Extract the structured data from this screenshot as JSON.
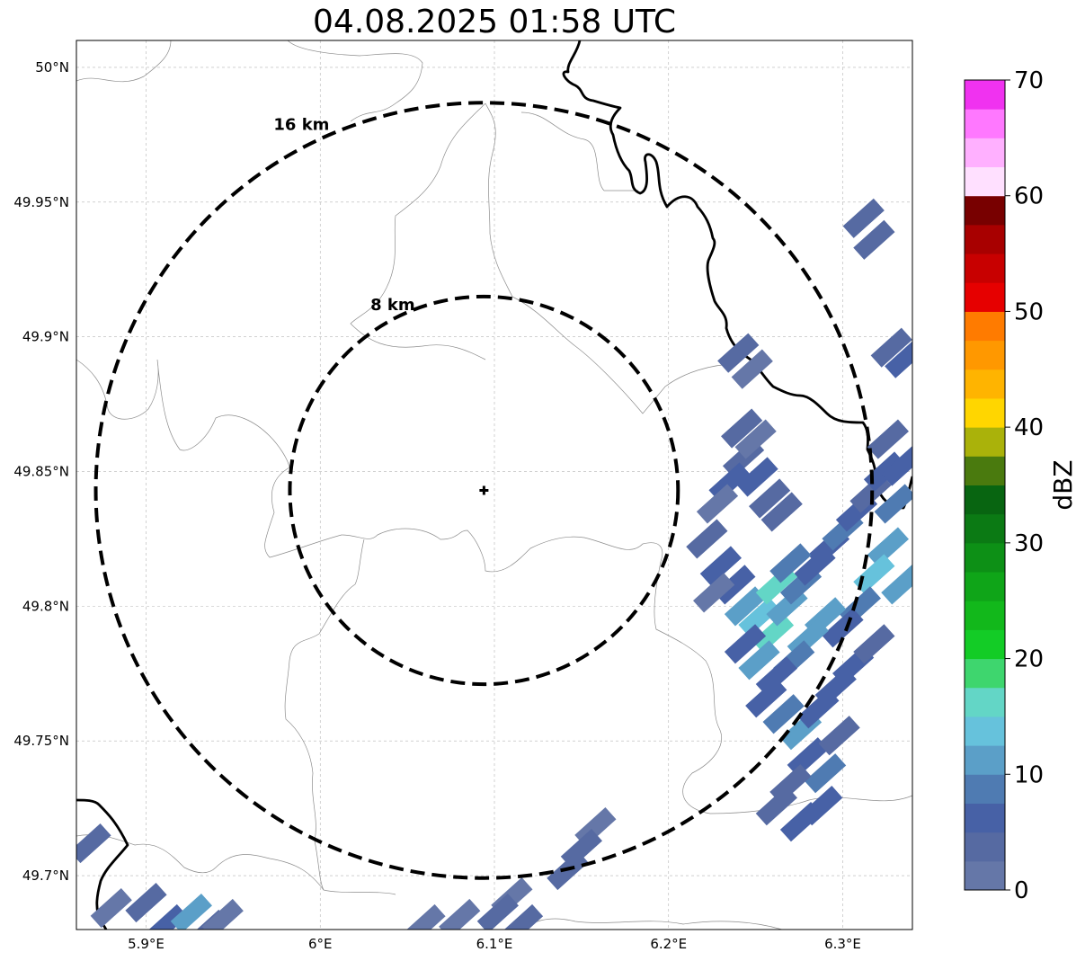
{
  "title": "04.08.2025 01:58 UTC",
  "map": {
    "lon_range": [
      5.86,
      6.34
    ],
    "lat_range": [
      49.68,
      50.01
    ],
    "x_ticks": [
      {
        "value": 5.9,
        "label": "5.9°E"
      },
      {
        "value": 6.0,
        "label": "6°E"
      },
      {
        "value": 6.1,
        "label": "6.1°E"
      },
      {
        "value": 6.2,
        "label": "6.2°E"
      },
      {
        "value": 6.3,
        "label": "6.3°E"
      }
    ],
    "y_ticks": [
      {
        "value": 50.0,
        "label": "50°N"
      },
      {
        "value": 49.95,
        "label": "49.95°N"
      },
      {
        "value": 49.9,
        "label": "49.9°N"
      },
      {
        "value": 49.85,
        "label": "49.85°N"
      },
      {
        "value": 49.8,
        "label": "49.8°N"
      },
      {
        "value": 49.75,
        "label": "49.75°N"
      },
      {
        "value": 49.7,
        "label": "49.7°N"
      }
    ],
    "grid": true,
    "radar_site": {
      "lon": 6.094,
      "lat": 49.843
    },
    "rings": [
      {
        "radius_km": 8,
        "label": "8 km"
      },
      {
        "radius_km": 16,
        "label": "16 km"
      }
    ]
  },
  "colorbar": {
    "label": "dBZ",
    "range": [
      0,
      70
    ],
    "ticks": [
      {
        "value": 0,
        "label": "0"
      },
      {
        "value": 10,
        "label": "10"
      },
      {
        "value": 20,
        "label": "20"
      },
      {
        "value": 30,
        "label": "30"
      },
      {
        "value": 40,
        "label": "40"
      },
      {
        "value": 50,
        "label": "50"
      },
      {
        "value": 60,
        "label": "60"
      },
      {
        "value": 70,
        "label": "70"
      }
    ],
    "colors": [
      "#6577a8",
      "#566aa2",
      "#4761a6",
      "#4f7bb2",
      "#5b9fc8",
      "#66c2dc",
      "#63d6c6",
      "#3ed66e",
      "#13cc26",
      "#12b81b",
      "#0fa518",
      "#0d9016",
      "#0b7a14",
      "#086511",
      "#4a7a0e",
      "#aab20a",
      "#ffd600",
      "#ffb400",
      "#ff9800",
      "#ff7b00",
      "#e60000",
      "#c80000",
      "#a80000",
      "#780000",
      "#ffe0ff",
      "#ffb0ff",
      "#ff78ff",
      "#f032f0"
    ]
  },
  "echo_cells": [
    {
      "lon": 6.243,
      "lat": 49.855,
      "dbz": 4
    },
    {
      "lon": 6.251,
      "lat": 49.848,
      "dbz": 6
    },
    {
      "lon": 6.258,
      "lat": 49.84,
      "dbz": 3
    },
    {
      "lon": 6.235,
      "lat": 49.846,
      "dbz": 5
    },
    {
      "lon": 6.228,
      "lat": 49.838,
      "dbz": 2
    },
    {
      "lon": 6.265,
      "lat": 49.835,
      "dbz": 4
    },
    {
      "lon": 6.222,
      "lat": 49.825,
      "dbz": 3
    },
    {
      "lon": 6.23,
      "lat": 49.815,
      "dbz": 5
    },
    {
      "lon": 6.238,
      "lat": 49.808,
      "dbz": 7
    },
    {
      "lon": 6.226,
      "lat": 49.805,
      "dbz": 2
    },
    {
      "lon": 6.244,
      "lat": 49.8,
      "dbz": 12
    },
    {
      "lon": 6.252,
      "lat": 49.796,
      "dbz": 14
    },
    {
      "lon": 6.26,
      "lat": 49.79,
      "dbz": 16
    },
    {
      "lon": 6.268,
      "lat": 49.8,
      "dbz": 12
    },
    {
      "lon": 6.276,
      "lat": 49.808,
      "dbz": 9
    },
    {
      "lon": 6.284,
      "lat": 49.815,
      "dbz": 7
    },
    {
      "lon": 6.292,
      "lat": 49.822,
      "dbz": 5
    },
    {
      "lon": 6.3,
      "lat": 49.828,
      "dbz": 8
    },
    {
      "lon": 6.308,
      "lat": 49.835,
      "dbz": 6
    },
    {
      "lon": 6.316,
      "lat": 49.842,
      "dbz": 4
    },
    {
      "lon": 6.324,
      "lat": 49.85,
      "dbz": 5
    },
    {
      "lon": 6.33,
      "lat": 49.838,
      "dbz": 9
    },
    {
      "lon": 6.326,
      "lat": 49.822,
      "dbz": 11
    },
    {
      "lon": 6.318,
      "lat": 49.812,
      "dbz": 13
    },
    {
      "lon": 6.334,
      "lat": 49.808,
      "dbz": 10
    },
    {
      "lon": 6.31,
      "lat": 49.8,
      "dbz": 8
    },
    {
      "lon": 6.3,
      "lat": 49.792,
      "dbz": 6
    },
    {
      "lon": 6.29,
      "lat": 49.796,
      "dbz": 10
    },
    {
      "lon": 6.28,
      "lat": 49.788,
      "dbz": 12
    },
    {
      "lon": 6.272,
      "lat": 49.78,
      "dbz": 9
    },
    {
      "lon": 6.262,
      "lat": 49.774,
      "dbz": 7
    },
    {
      "lon": 6.252,
      "lat": 49.78,
      "dbz": 11
    },
    {
      "lon": 6.244,
      "lat": 49.786,
      "dbz": 6
    },
    {
      "lon": 6.256,
      "lat": 49.766,
      "dbz": 5
    },
    {
      "lon": 6.266,
      "lat": 49.76,
      "dbz": 8
    },
    {
      "lon": 6.276,
      "lat": 49.754,
      "dbz": 10
    },
    {
      "lon": 6.286,
      "lat": 49.762,
      "dbz": 7
    },
    {
      "lon": 6.296,
      "lat": 49.77,
      "dbz": 5
    },
    {
      "lon": 6.306,
      "lat": 49.778,
      "dbz": 6
    },
    {
      "lon": 6.318,
      "lat": 49.786,
      "dbz": 4
    },
    {
      "lon": 6.28,
      "lat": 49.744,
      "dbz": 6
    },
    {
      "lon": 6.29,
      "lat": 49.738,
      "dbz": 9
    },
    {
      "lon": 6.27,
      "lat": 49.734,
      "dbz": 4
    },
    {
      "lon": 6.262,
      "lat": 49.726,
      "dbz": 3
    },
    {
      "lon": 6.276,
      "lat": 49.72,
      "dbz": 5
    },
    {
      "lon": 6.288,
      "lat": 49.726,
      "dbz": 6
    },
    {
      "lon": 6.298,
      "lat": 49.752,
      "dbz": 3
    },
    {
      "lon": 6.262,
      "lat": 49.808,
      "dbz": 15
    },
    {
      "lon": 6.27,
      "lat": 49.816,
      "dbz": 8
    },
    {
      "lon": 6.326,
      "lat": 49.862,
      "dbz": 4
    },
    {
      "lon": 6.334,
      "lat": 49.852,
      "dbz": 6
    },
    {
      "lon": 6.242,
      "lat": 49.866,
      "dbz": 3
    },
    {
      "lon": 6.25,
      "lat": 49.862,
      "dbz": 2
    },
    {
      "lon": 6.158,
      "lat": 49.718,
      "dbz": 2
    },
    {
      "lon": 6.15,
      "lat": 49.71,
      "dbz": 4
    },
    {
      "lon": 6.142,
      "lat": 49.702,
      "dbz": 3
    },
    {
      "lon": 6.11,
      "lat": 49.692,
      "dbz": 2
    },
    {
      "lon": 6.102,
      "lat": 49.686,
      "dbz": 4
    },
    {
      "lon": 6.116,
      "lat": 49.682,
      "dbz": 3
    },
    {
      "lon": 6.08,
      "lat": 49.684,
      "dbz": 2
    },
    {
      "lon": 6.06,
      "lat": 49.682,
      "dbz": 1
    },
    {
      "lon": 5.868,
      "lat": 49.712,
      "dbz": 3
    },
    {
      "lon": 5.88,
      "lat": 49.688,
      "dbz": 2
    },
    {
      "lon": 5.9,
      "lat": 49.69,
      "dbz": 4
    },
    {
      "lon": 5.912,
      "lat": 49.682,
      "dbz": 5
    },
    {
      "lon": 5.926,
      "lat": 49.686,
      "dbz": 12
    },
    {
      "lon": 5.936,
      "lat": 49.68,
      "dbz": 3
    },
    {
      "lon": 5.944,
      "lat": 49.684,
      "dbz": 2
    },
    {
      "lon": 6.24,
      "lat": 49.894,
      "dbz": 3
    },
    {
      "lon": 6.248,
      "lat": 49.888,
      "dbz": 2
    },
    {
      "lon": 6.312,
      "lat": 49.944,
      "dbz": 4
    },
    {
      "lon": 6.318,
      "lat": 49.936,
      "dbz": 3
    },
    {
      "lon": 6.328,
      "lat": 49.896,
      "dbz": 4
    },
    {
      "lon": 6.336,
      "lat": 49.892,
      "dbz": 5
    }
  ]
}
